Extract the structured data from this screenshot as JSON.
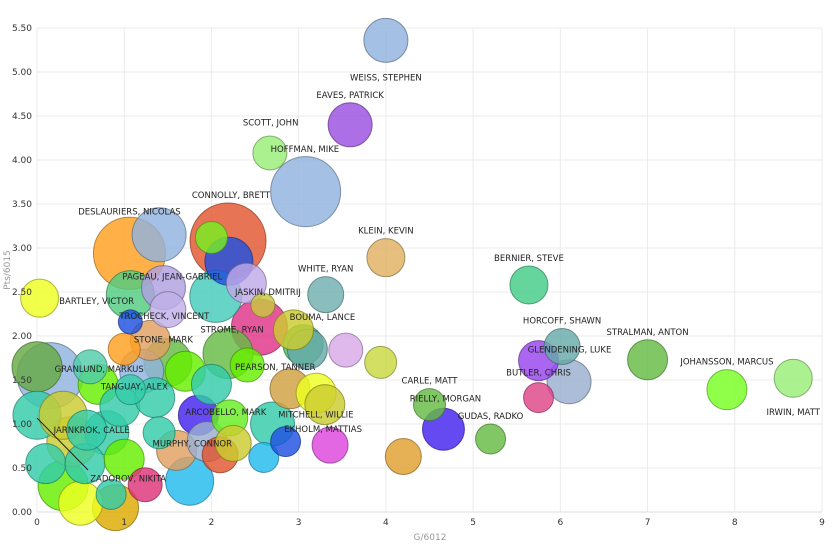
{
  "chart_data": {
    "type": "scatter",
    "subtype": "bubble",
    "title": "",
    "xlabel": "G/6012",
    "ylabel": "Pts/6015",
    "xlim": [
      0,
      9
    ],
    "ylim": [
      0,
      5.5
    ],
    "x_ticks": [
      "0",
      "1",
      "2",
      "3",
      "4",
      "5",
      "6",
      "7",
      "8",
      "9"
    ],
    "y_ticks": [
      "0.00",
      "0.50",
      "1.00",
      "1.50",
      "2.00",
      "2.50",
      "3.00",
      "3.50",
      "4.00",
      "4.50",
      "5.00",
      "5.50"
    ],
    "grid": true,
    "labeled_points": [
      {
        "label": "WEISS, STEPHEN",
        "x": 4.0,
        "y": 5.36,
        "size": 2.2,
        "color": "#90b2de"
      },
      {
        "label": "EAVES, PATRICK",
        "x": 3.59,
        "y": 4.4,
        "size": 2.2,
        "color": "#9a4fe0"
      },
      {
        "label": "SCOTT, JOHN",
        "x": 3.08,
        "y": 3.64,
        "size": 3.5,
        "color": "#90b2de"
      },
      {
        "label": "HOFFMAN, MIKE",
        "x": 2.67,
        "y": 4.08,
        "size": 1.7,
        "color": "#99ee77"
      },
      {
        "label": "CONNOLLY, BRETT",
        "x": 2.19,
        "y": 3.08,
        "size": 3.8,
        "color": "#e05530"
      },
      {
        "label": "DESLAURIERS, NICOLAS",
        "x": 1.06,
        "y": 2.94,
        "size": 3.6,
        "color": "#ffa020"
      },
      {
        "label": "KLEIN, KEVIN",
        "x": 4.0,
        "y": 2.89,
        "size": 1.9,
        "color": "#e0b060"
      },
      {
        "label": "WHITE, RYAN",
        "x": 3.31,
        "y": 2.47,
        "size": 1.8,
        "color": "#70b0b0"
      },
      {
        "label": "PAGEAU, JEAN-GABRIEL",
        "x": 1.07,
        "y": 2.47,
        "size": 2.4,
        "color": "#50cc80"
      },
      {
        "label": "JASKIN, DMITRIJ",
        "x": 2.59,
        "y": 2.35,
        "size": 1.2,
        "color": "#c8c840"
      },
      {
        "label": "BARTLEY, VICTOR",
        "x": 0.03,
        "y": 2.43,
        "size": 1.9,
        "color": "#eeff22"
      },
      {
        "label": "TROCHECK, VINCENT",
        "x": 1.07,
        "y": 2.16,
        "size": 1.2,
        "color": "#2050e0"
      },
      {
        "label": "BOUMA, LANCE",
        "x": 2.94,
        "y": 2.07,
        "size": 2.0,
        "color": "#cccc30"
      },
      {
        "label": "STROME, RYAN",
        "x": 2.19,
        "y": 1.8,
        "size": 2.5,
        "color": "#66bb44"
      },
      {
        "label": "STONE, MARK",
        "x": 1.3,
        "y": 1.95,
        "size": 2.0,
        "color": "#e0a060"
      },
      {
        "label": "GRANLUND, MARKUS",
        "x": 0.61,
        "y": 1.65,
        "size": 1.7,
        "color": "#50ccaa"
      },
      {
        "label": "TANGUAY, ALEX",
        "x": 1.07,
        "y": 1.39,
        "size": 1.5,
        "color": "#33ccaa"
      },
      {
        "label": "PEARSON, TANNER",
        "x": 2.41,
        "y": 1.67,
        "size": 1.7,
        "color": "#66ee00"
      },
      {
        "label": "ARCOBELLO, MARK",
        "x": 2.21,
        "y": 1.07,
        "size": 1.8,
        "color": "#66ee22"
      },
      {
        "label": "MITCHELL, WILLIE",
        "x": 3.3,
        "y": 1.22,
        "size": 2.0,
        "color": "#cccc30"
      },
      {
        "label": "EKHOLM, MATTIAS",
        "x": 3.36,
        "y": 0.76,
        "size": 1.8,
        "color": "#dd44dd"
      },
      {
        "label": "MURPHY, CONNOR",
        "x": 2.25,
        "y": 0.78,
        "size": 1.8,
        "color": "#cccc30"
      },
      {
        "label": "JARNKROK, CALLE",
        "x": 0.57,
        "y": 0.93,
        "size": 2.0,
        "color": "#33ccaa"
      },
      {
        "label": "ZADOROV, NIKITA",
        "x": 1.24,
        "y": 0.31,
        "size": 1.7,
        "color": "#dd3377"
      },
      {
        "label": "CARLE, MATT",
        "x": 4.5,
        "y": 1.22,
        "size": 1.6,
        "color": "#66bb44"
      },
      {
        "label": "RIELLY, MORGAN",
        "x": 4.66,
        "y": 0.94,
        "size": 2.1,
        "color": "#4422ee"
      },
      {
        "label": "GUDAS, RADKO",
        "x": 5.2,
        "y": 0.83,
        "size": 1.5,
        "color": "#66bb44"
      },
      {
        "label": "BERNIER, STEVE",
        "x": 5.64,
        "y": 2.58,
        "size": 1.9,
        "color": "#44cc88"
      },
      {
        "label": "HORCOFF, SHAWN",
        "x": 6.02,
        "y": 1.88,
        "size": 1.8,
        "color": "#66aaaa"
      },
      {
        "label": "GLENDENING, LUKE",
        "x": 5.75,
        "y": 1.72,
        "size": 2.0,
        "color": "#9944ee"
      },
      {
        "label": "BUTLER, CHRIS",
        "x": 5.75,
        "y": 1.3,
        "size": 1.5,
        "color": "#dd4488"
      },
      {
        "label": "STRALMAN, ANTON",
        "x": 7.0,
        "y": 1.73,
        "size": 2.0,
        "color": "#66bb44"
      },
      {
        "label": "JOHANSSON, MARCUS",
        "x": 7.91,
        "y": 1.39,
        "size": 2.0,
        "color": "#77ff22"
      },
      {
        "label": "IRWIN, MATT",
        "x": 8.67,
        "y": 1.52,
        "size": 1.9,
        "color": "#99ee77"
      }
    ],
    "other_points": [
      {
        "x": 6.1,
        "y": 1.48,
        "size": 2.2,
        "color": "#9aaed0"
      },
      {
        "x": 4.2,
        "y": 0.63,
        "size": 1.8,
        "color": "#e0a030"
      },
      {
        "x": 3.94,
        "y": 1.7,
        "size": 1.6,
        "color": "#c8d840"
      },
      {
        "x": 3.54,
        "y": 1.84,
        "size": 1.7,
        "color": "#d8a8e8"
      },
      {
        "x": 1.4,
        "y": 3.15,
        "size": 2.7,
        "color": "#90b2de"
      },
      {
        "x": 2.0,
        "y": 3.12,
        "size": 1.6,
        "color": "#77ee22"
      },
      {
        "x": 2.2,
        "y": 2.85,
        "size": 2.4,
        "color": "#2050e0"
      },
      {
        "x": 2.4,
        "y": 2.6,
        "size": 2.0,
        "color": "#c0a8e8"
      },
      {
        "x": 2.05,
        "y": 2.45,
        "size": 2.6,
        "color": "#44ccbb"
      },
      {
        "x": 1.45,
        "y": 2.55,
        "size": 2.2,
        "color": "#b0a0e0"
      },
      {
        "x": 1.5,
        "y": 2.3,
        "size": 1.8,
        "color": "#c0b0e8"
      },
      {
        "x": 2.55,
        "y": 2.1,
        "size": 2.8,
        "color": "#e03388"
      },
      {
        "x": 0.0,
        "y": 1.65,
        "size": 2.5,
        "color": "#66aa44"
      },
      {
        "x": 0.15,
        "y": 1.55,
        "size": 3.3,
        "color": "#90b2de"
      },
      {
        "x": 0.0,
        "y": 1.1,
        "size": 2.4,
        "color": "#33ccaa"
      },
      {
        "x": 0.1,
        "y": 0.55,
        "size": 2.0,
        "color": "#33ccaa"
      },
      {
        "x": 0.3,
        "y": 0.3,
        "size": 2.5,
        "color": "#66ee00"
      },
      {
        "x": 0.4,
        "y": 0.8,
        "size": 2.5,
        "color": "#cccc30"
      },
      {
        "x": 0.3,
        "y": 1.1,
        "size": 2.4,
        "color": "#cccc30"
      },
      {
        "x": 0.5,
        "y": 0.1,
        "size": 2.2,
        "color": "#eeff22"
      },
      {
        "x": 0.55,
        "y": 0.55,
        "size": 2.0,
        "color": "#33ccaa"
      },
      {
        "x": 0.7,
        "y": 1.45,
        "size": 2.0,
        "color": "#66ee00"
      },
      {
        "x": 0.8,
        "y": 0.9,
        "size": 2.2,
        "color": "#33ccaa"
      },
      {
        "x": 0.85,
        "y": 0.2,
        "size": 1.5,
        "color": "#33ccaa"
      },
      {
        "x": 0.95,
        "y": 1.2,
        "size": 2.0,
        "color": "#33ccaa"
      },
      {
        "x": 1.0,
        "y": 0.6,
        "size": 2.0,
        "color": "#66ee00"
      },
      {
        "x": 1.0,
        "y": 1.85,
        "size": 1.6,
        "color": "#ffa020"
      },
      {
        "x": 1.2,
        "y": 1.6,
        "size": 2.2,
        "color": "#90b2de"
      },
      {
        "x": 1.35,
        "y": 1.3,
        "size": 2.0,
        "color": "#33ccaa"
      },
      {
        "x": 1.4,
        "y": 0.9,
        "size": 1.6,
        "color": "#33ccaa"
      },
      {
        "x": 1.5,
        "y": 1.7,
        "size": 2.4,
        "color": "#66bb44"
      },
      {
        "x": 1.6,
        "y": 0.7,
        "size": 2.0,
        "color": "#e0a060"
      },
      {
        "x": 1.7,
        "y": 1.6,
        "size": 2.0,
        "color": "#66ee00"
      },
      {
        "x": 1.75,
        "y": 0.35,
        "size": 2.4,
        "color": "#22bbee"
      },
      {
        "x": 1.85,
        "y": 1.1,
        "size": 2.0,
        "color": "#4422ee"
      },
      {
        "x": 1.95,
        "y": 0.8,
        "size": 2.0,
        "color": "#9aaed0"
      },
      {
        "x": 2.0,
        "y": 1.45,
        "size": 2.0,
        "color": "#33ccaa"
      },
      {
        "x": 2.1,
        "y": 0.65,
        "size": 1.8,
        "color": "#e05530"
      },
      {
        "x": 2.6,
        "y": 0.62,
        "size": 1.5,
        "color": "#22bbee"
      },
      {
        "x": 2.7,
        "y": 1.0,
        "size": 2.2,
        "color": "#33ccaa"
      },
      {
        "x": 2.85,
        "y": 0.8,
        "size": 1.5,
        "color": "#2050e0"
      },
      {
        "x": 2.9,
        "y": 1.4,
        "size": 2.0,
        "color": "#d0a040"
      },
      {
        "x": 3.05,
        "y": 1.9,
        "size": 2.0,
        "color": "#44bb66"
      },
      {
        "x": 3.2,
        "y": 1.35,
        "size": 2.0,
        "color": "#eeff22"
      },
      {
        "x": 3.1,
        "y": 1.85,
        "size": 2.0,
        "color": "#66aaaa"
      },
      {
        "x": 0.9,
        "y": 0.05,
        "size": 2.3,
        "color": "#ddaa00"
      }
    ]
  }
}
